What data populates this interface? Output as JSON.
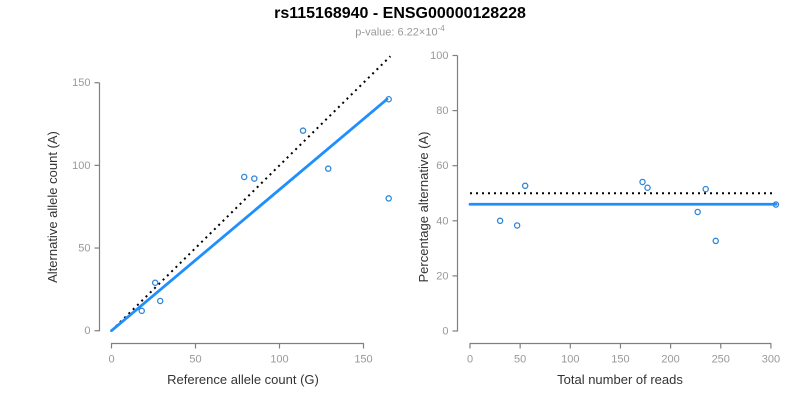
{
  "header": {
    "title": "rs115168940 - ENSG00000128228",
    "pvalue_prefix": "p-value: 6.22×10",
    "pvalue_exponent": "-4"
  },
  "colors": {
    "fit_line": "#1F8FFF",
    "points": "#2E86D8",
    "reference_line": "#000000",
    "axis": "#808080",
    "tick_labels": "#999999",
    "axis_titles": "#333333",
    "title": "#000000",
    "subtitle": "#999999"
  },
  "chart_data": [
    {
      "type": "scatter",
      "title": "rs115168940 - ENSG00000128228",
      "subtitle": "p-value: 6.22×10^-4",
      "xlabel": "Reference allele count (G)",
      "ylabel": "Alternative allele count (A)",
      "x_ticks": [
        0,
        50,
        100,
        150
      ],
      "y_ticks": [
        0,
        50,
        100,
        150
      ],
      "xlim": [
        0,
        166
      ],
      "ylim": [
        0,
        167
      ],
      "grid": false,
      "legend": "none",
      "points": [
        [
          18,
          12
        ],
        [
          29,
          18
        ],
        [
          26,
          29
        ],
        [
          79,
          93
        ],
        [
          85,
          92
        ],
        [
          114,
          121
        ],
        [
          129,
          98
        ],
        [
          165,
          80
        ],
        [
          165,
          140
        ]
      ],
      "fit_line": {
        "x": [
          0,
          164
        ],
        "y": [
          0,
          140
        ],
        "style": "solid"
      },
      "reference_line": {
        "x": [
          0,
          166
        ],
        "y": [
          0,
          166
        ],
        "style": "dotted"
      }
    },
    {
      "type": "scatter",
      "xlabel": "Total number of reads",
      "ylabel": "Percentage alternative (A)",
      "x_ticks": [
        0,
        50,
        100,
        150,
        200,
        250,
        300
      ],
      "y_ticks": [
        0,
        20,
        40,
        60,
        80,
        100
      ],
      "xlim": [
        0,
        305
      ],
      "ylim": [
        0,
        100
      ],
      "grid": false,
      "legend": "none",
      "points": [
        [
          30,
          40.0
        ],
        [
          47,
          38.3
        ],
        [
          55,
          52.7
        ],
        [
          172,
          54.1
        ],
        [
          177,
          52.0
        ],
        [
          227,
          43.2
        ],
        [
          235,
          51.5
        ],
        [
          245,
          32.7
        ],
        [
          305,
          45.9
        ]
      ],
      "fit_line": {
        "x": [
          0,
          305
        ],
        "y": [
          46,
          46
        ],
        "style": "solid"
      },
      "reference_line": {
        "x": [
          0,
          305
        ],
        "y": [
          50,
          50
        ],
        "style": "dotted"
      }
    }
  ]
}
